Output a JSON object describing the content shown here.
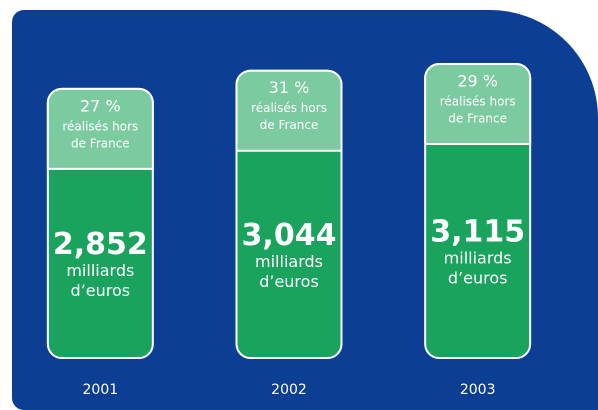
{
  "chart_data": {
    "type": "bar",
    "categories": [
      "2001",
      "2002",
      "2003"
    ],
    "values": [
      2.852,
      3.044,
      3.115
    ],
    "value_labels": [
      "2,852",
      "3,044",
      "3,115"
    ],
    "share_values": [
      27,
      31,
      29
    ],
    "share_labels": [
      "27 %",
      "31 %",
      "29 %"
    ],
    "share_text": [
      "réalisés hors",
      "de France"
    ],
    "unit_text": [
      "milliards",
      "d’euros"
    ],
    "color": "#19a35c",
    "share_color": "#7ccba0",
    "background": "#0c3f94"
  }
}
